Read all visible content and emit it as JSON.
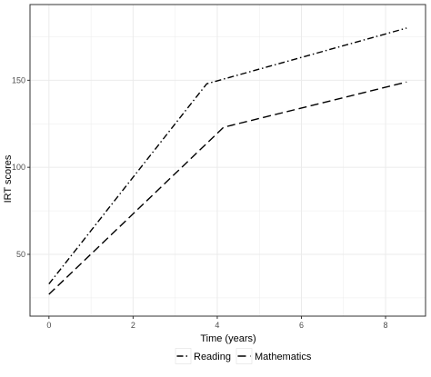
{
  "chart_data": {
    "type": "line",
    "xlabel": "Time (years)",
    "ylabel": "IRT scores",
    "xlim": [
      -0.45,
      8.95
    ],
    "ylim": [
      14.5,
      193.5
    ],
    "x_ticks": [
      0,
      2,
      4,
      6,
      8
    ],
    "x_tick_labels": [
      "0",
      "2",
      "4",
      "6",
      "8"
    ],
    "y_ticks": [
      50,
      100,
      150
    ],
    "y_tick_labels": [
      "50",
      "100",
      "150"
    ],
    "grid": true,
    "legend_position": "bottom",
    "series": [
      {
        "name": "Reading",
        "line_style": "dashdot",
        "x": [
          0,
          3.75,
          8.5
        ],
        "y": [
          33,
          148,
          180
        ]
      },
      {
        "name": "Mathematics",
        "line_style": "dashed",
        "x": [
          0,
          4.15,
          8.5
        ],
        "y": [
          27,
          123,
          149
        ]
      }
    ],
    "colors": {
      "line": "#000000",
      "grid": "#ebebeb",
      "panel_border": "#333333"
    }
  }
}
